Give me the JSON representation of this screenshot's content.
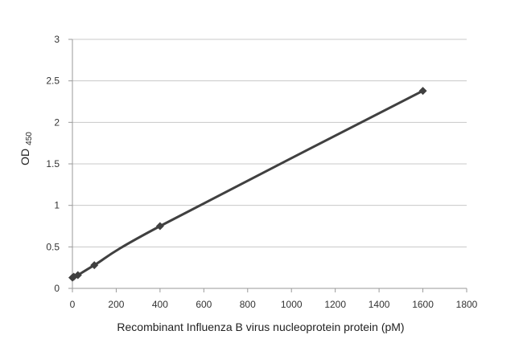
{
  "chart_data": {
    "type": "line",
    "title": "",
    "xlabel": "Recombinant Influenza B virus nucleoprotein protein (pM)",
    "ylabel": "OD",
    "ylabel_subscript": "450",
    "xlim": [
      0,
      1800
    ],
    "ylim": [
      0,
      3
    ],
    "xticks": [
      "0",
      "200",
      "400",
      "600",
      "800",
      "1000",
      "1200",
      "1400",
      "1600",
      "1800"
    ],
    "yticks": [
      "0",
      "0.5",
      "1",
      "1.5",
      "2",
      "2.5",
      "3"
    ],
    "grid": true,
    "series": [
      {
        "x": [
          0,
          6.25,
          25,
          100,
          400,
          1600
        ],
        "y": [
          0.13,
          0.14,
          0.16,
          0.28,
          0.75,
          2.38
        ]
      }
    ],
    "colors": {
      "line": "#404040",
      "marker": "#404040",
      "grid": "#c8c8c8",
      "axis": "#9a9a9a"
    }
  }
}
